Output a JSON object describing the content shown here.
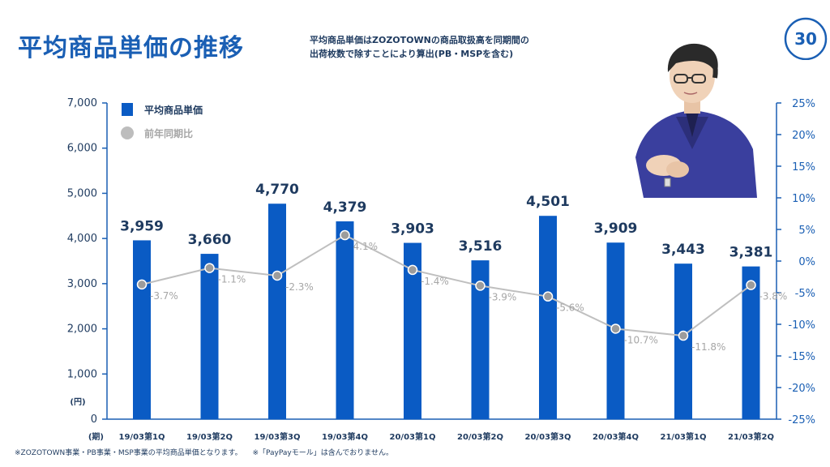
{
  "header": {
    "title": "平均商品単価の推移",
    "subtitle_lines": [
      "平均商品単価はZOZOTOWNの商品取扱高を同期間の",
      "出荷枚数で除すことにより算出(PB・MSPを含む)"
    ],
    "page_number": "30"
  },
  "footnotes": [
    "※ZOZOTOWN事業・PB事業・MSP事業の平均商品単価となります。",
    "※「PayPayモール」は含んでおりません。"
  ],
  "colors": {
    "bar": "#0a5bc4",
    "line": "#bfbfbf",
    "accent": "#1a5fb4",
    "label": "#1e3a5f",
    "pct_label": "#a6a6a6"
  },
  "chart_data": {
    "type": "bar",
    "categories": [
      "19/03第1Q",
      "19/03第2Q",
      "19/03第3Q",
      "19/03第4Q",
      "20/03第1Q",
      "20/03第2Q",
      "20/03第3Q",
      "20/03第4Q",
      "21/03第1Q",
      "21/03第2Q"
    ],
    "series": [
      {
        "name": "平均商品単価",
        "type": "bar",
        "axis": "left",
        "values": [
          3959,
          3660,
          4770,
          4379,
          3903,
          3516,
          4501,
          3909,
          3443,
          3381
        ],
        "labels": [
          "3,959",
          "3,660",
          "4,770",
          "4,379",
          "3,903",
          "3,516",
          "4,501",
          "3,909",
          "3,443",
          "3,381"
        ]
      },
      {
        "name": "前年同期比",
        "type": "line",
        "axis": "right",
        "values": [
          -3.7,
          -1.1,
          -2.3,
          4.1,
          -1.4,
          -3.9,
          -5.6,
          -10.7,
          -11.8,
          -3.8
        ],
        "labels": [
          "-3.7%",
          "-1.1%",
          "-2.3%",
          "4.1%",
          "-1.4%",
          "-3.9%",
          "-5.6%",
          "-10.7%",
          "-11.8%",
          "-3.8%"
        ]
      }
    ],
    "y_left": {
      "ylim": [
        0,
        7000
      ],
      "ticks": [
        "0",
        "1,000",
        "2,000",
        "3,000",
        "4,000",
        "5,000",
        "6,000",
        "7,000"
      ],
      "unit": "(円)"
    },
    "y_right": {
      "ylim": [
        -25,
        25
      ],
      "ticks": [
        "-25%",
        "-20%",
        "-15%",
        "-10%",
        "-5%",
        "0%",
        "5%",
        "10%",
        "15%",
        "20%",
        "25%"
      ]
    },
    "xlabel": "(期)",
    "legend": {
      "position": "top-left",
      "items": [
        "平均商品単価",
        "前年同期比"
      ]
    },
    "grid": false
  }
}
